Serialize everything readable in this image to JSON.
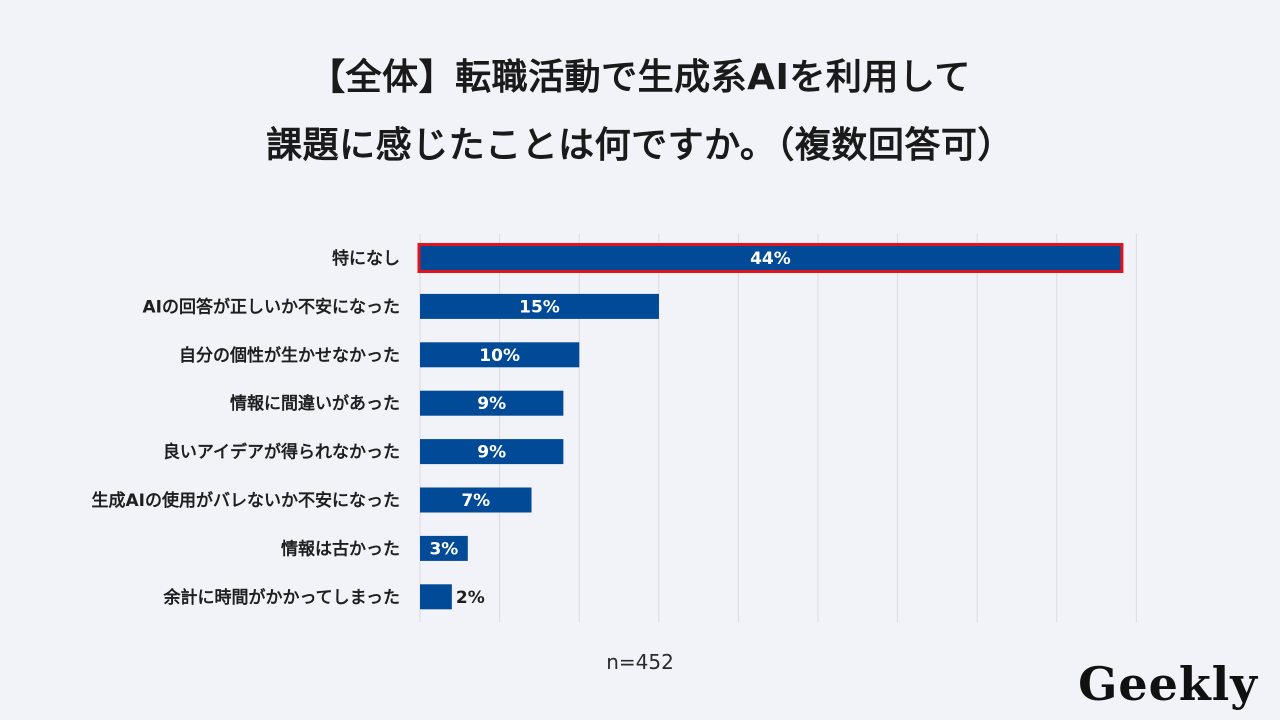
{
  "page": {
    "title_line1": "【全体】転職活動で生成系AIを利用して",
    "title_line2": "課題に感じたことは何ですか。（複数回答可）",
    "n_label": "n=452",
    "brand": "Geekly"
  },
  "colors": {
    "bar": "#014a97",
    "highlight_outline": "#e0141e",
    "background": "#f2f3f8",
    "grid": "#d9dae0"
  },
  "chart_data": {
    "type": "bar",
    "orientation": "horizontal",
    "title": "【全体】転職活動で生成系AIを利用して課題に感じたことは何ですか。（複数回答可）",
    "categories": [
      "特になし",
      "AIの回答が正しいか不安になった",
      "自分の個性が生かせなかった",
      "情報に間違いがあった",
      "良いアイデアが得られなかった",
      "生成AIの使用がバレないか不安になった",
      "情報は古かった",
      "余計に時間がかかってしまった"
    ],
    "values": [
      44,
      15,
      10,
      9,
      9,
      7,
      3,
      2
    ],
    "data_labels": [
      "44%",
      "15%",
      "10%",
      "9%",
      "9%",
      "7%",
      "3%",
      "2%"
    ],
    "highlighted_index": 0,
    "xlim": [
      0,
      45
    ],
    "grid": true,
    "unit": "%"
  }
}
